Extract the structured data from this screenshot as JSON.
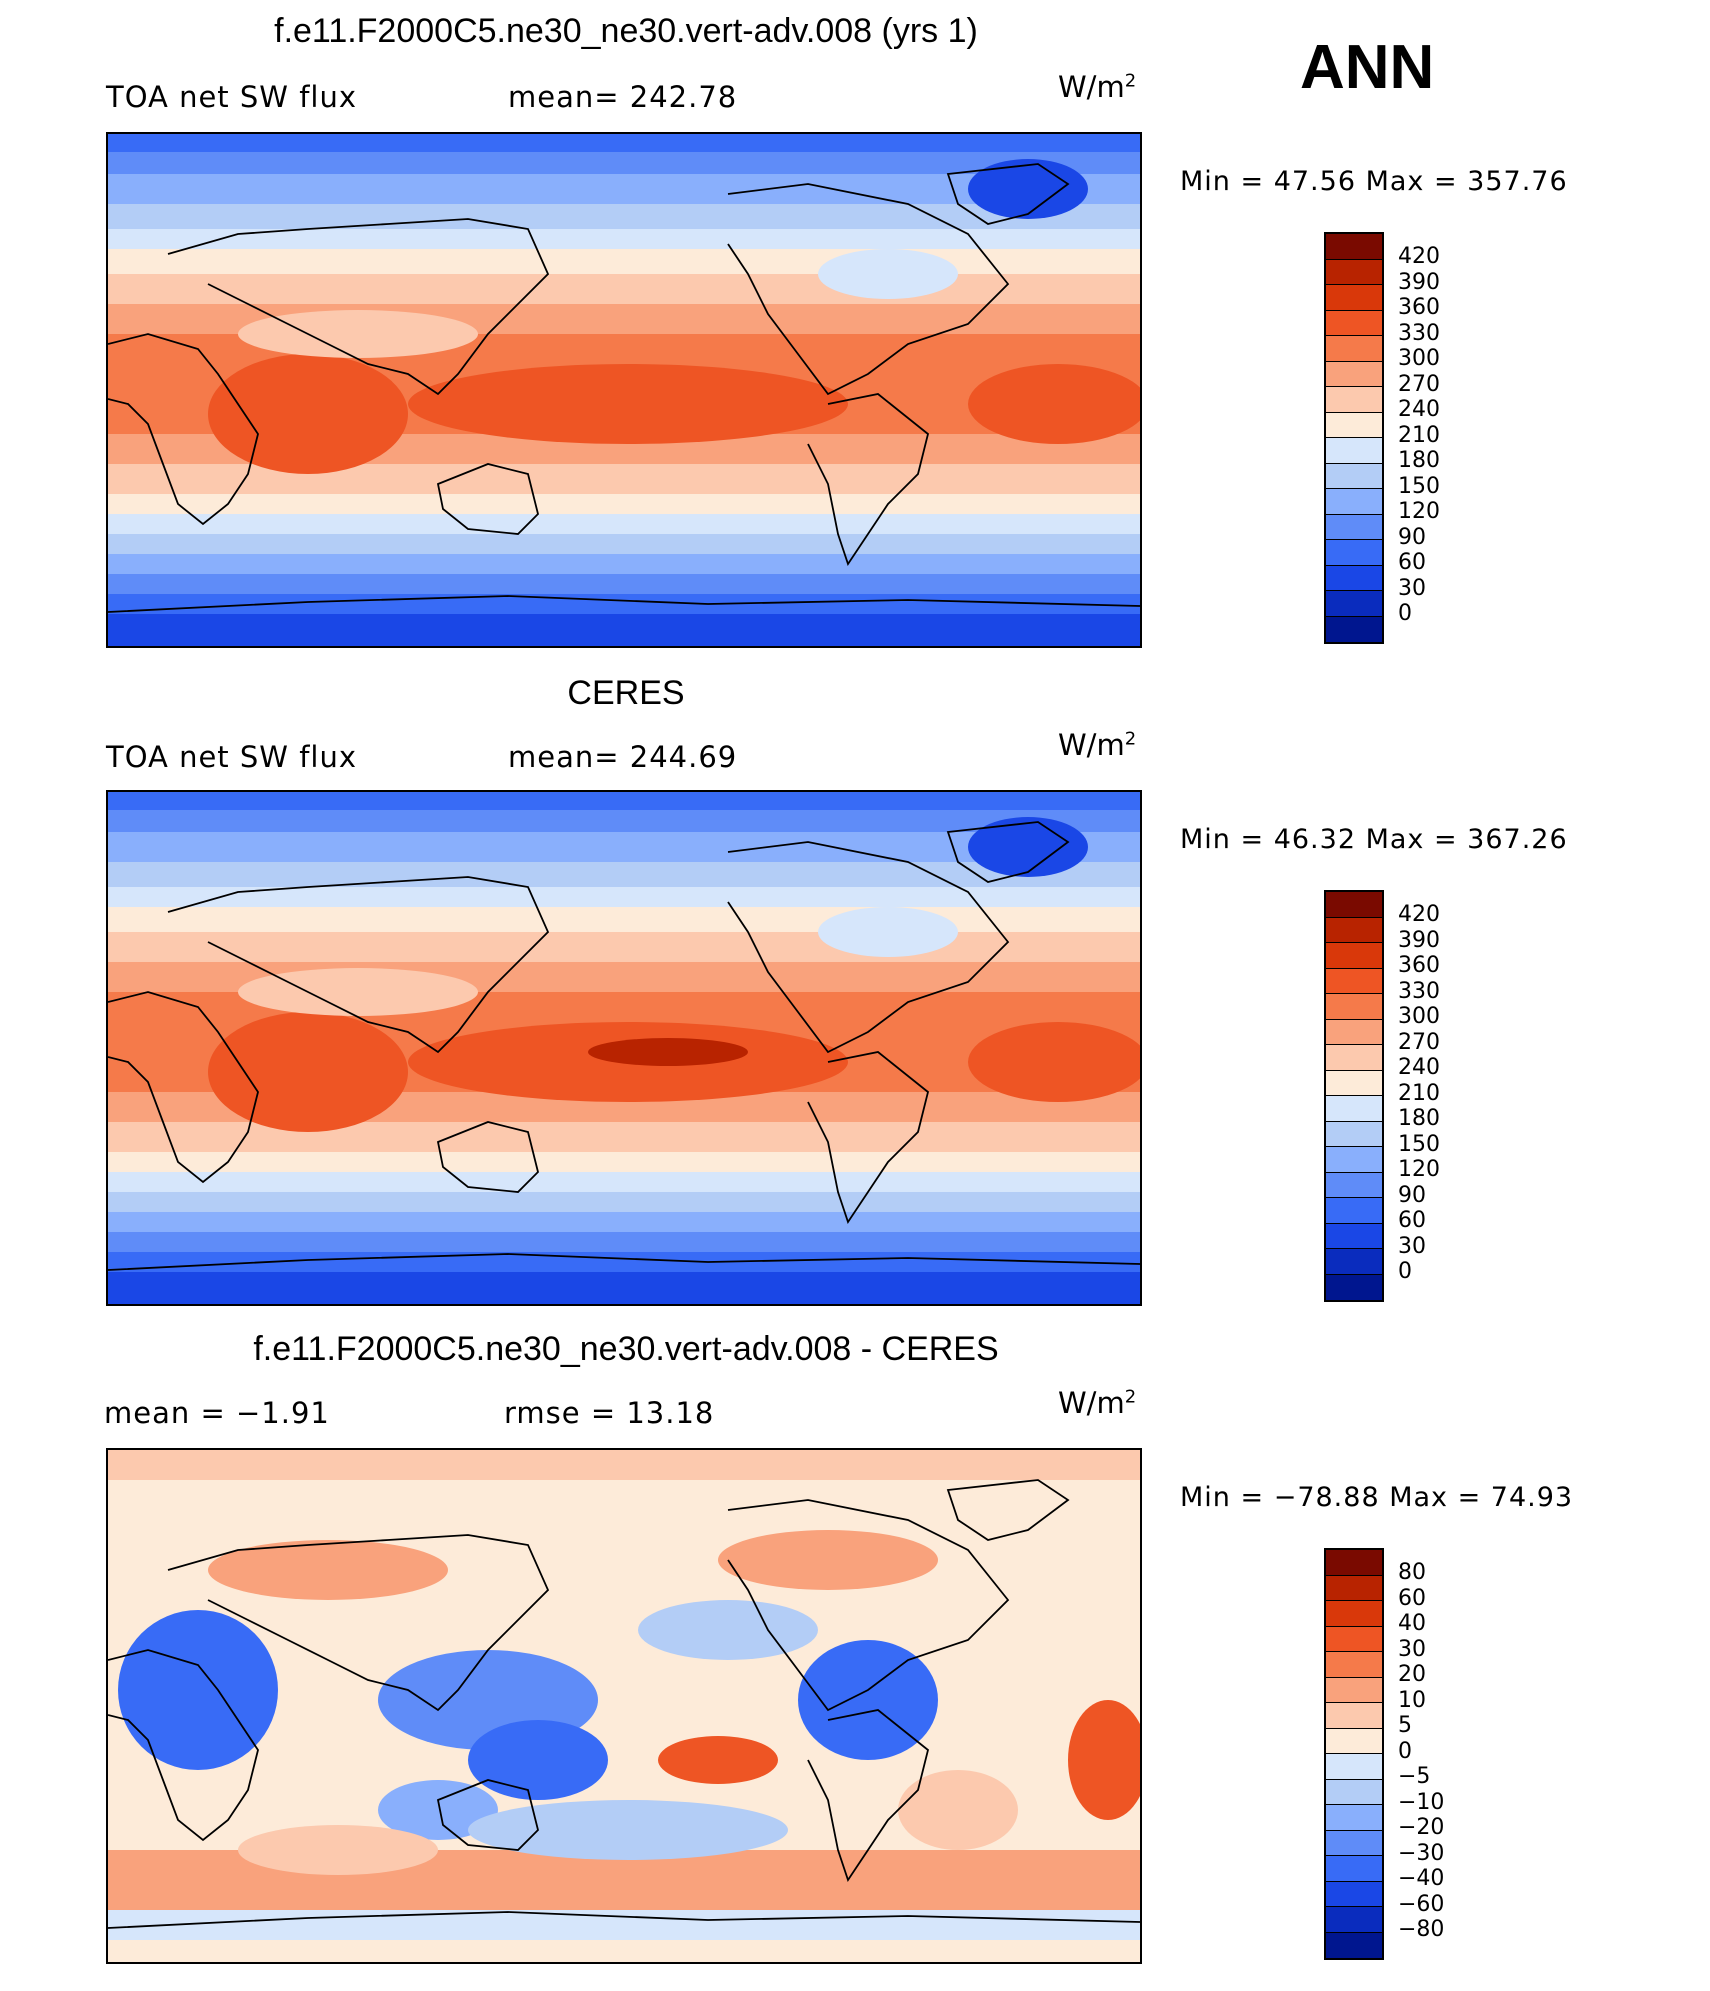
{
  "season": "ANN",
  "panels": [
    {
      "title": "f.e11.F2000C5.ne30_ne30.vert-adv.008 (yrs 1)",
      "left_label": "TOA net SW flux",
      "mid_label": "mean= 242.78",
      "unit": "W/m",
      "unit_sup": "2",
      "minmax": "Min =   47.56 Max = 357.76",
      "kind": "abs"
    },
    {
      "title": "CERES",
      "left_label": "TOA net SW flux",
      "mid_label": "mean= 244.69",
      "unit": "W/m",
      "unit_sup": "2",
      "minmax": "Min =   46.32 Max = 367.26",
      "kind": "abs"
    },
    {
      "title": "f.e11.F2000C5.ne30_ne30.vert-adv.008 - CERES",
      "left_label": "mean =   −1.91",
      "mid_label": "rmse =   13.18",
      "unit": "W/m",
      "unit_sup": "2",
      "minmax": "Min = −78.88 Max =   74.93",
      "kind": "diff"
    }
  ],
  "colorbars": {
    "abs": {
      "labels": [
        "420",
        "390",
        "360",
        "330",
        "300",
        "270",
        "240",
        "210",
        "180",
        "150",
        "120",
        "90",
        "60",
        "30",
        "0"
      ],
      "colors": [
        "#7a0a00",
        "#b82300",
        "#d9380a",
        "#ee5524",
        "#f57a4a",
        "#f9a27c",
        "#fcc9ae",
        "#fdebd9",
        "#d6e6fb",
        "#b3cdf6",
        "#89affc",
        "#5f8cf8",
        "#386bf6",
        "#1a47e6",
        "#0a2cbe",
        "#00168f"
      ]
    },
    "diff": {
      "labels": [
        "80",
        "60",
        "40",
        "30",
        "20",
        "10",
        "5",
        "0",
        "−5",
        "−10",
        "−20",
        "−30",
        "−40",
        "−60",
        "−80"
      ],
      "colors": [
        "#7a0a00",
        "#b82300",
        "#d9380a",
        "#ee5524",
        "#f57a4a",
        "#f9a27c",
        "#fcc9ae",
        "#fdebd9",
        "#d6e6fb",
        "#b3cdf6",
        "#89affc",
        "#5f8cf8",
        "#386bf6",
        "#1a47e6",
        "#0a2cbe",
        "#00168f"
      ]
    }
  }
}
